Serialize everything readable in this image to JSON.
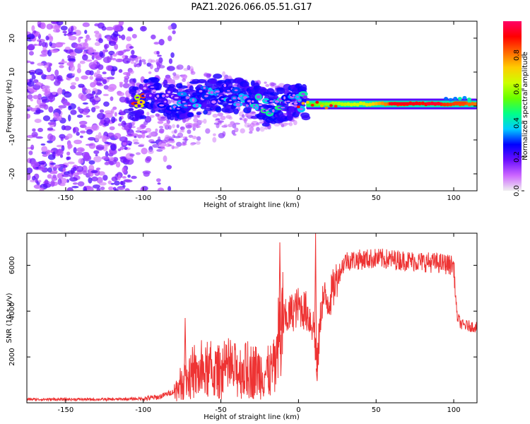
{
  "title": "PAZ1.2026.066.05.51.G17",
  "chart_data": [
    {
      "type": "heatmap",
      "name": "spectrogram",
      "xlabel": "Height of straight line (km)",
      "ylabel": "Frequency (Hz)",
      "xlim": [
        -175,
        115
      ],
      "ylim": [
        -25,
        25
      ],
      "xticks": [
        -150,
        -100,
        -50,
        0,
        50,
        100
      ],
      "yticks": [
        -20,
        -10,
        0,
        10,
        20
      ],
      "colorbar": {
        "label": "Normalized spectral amplitude",
        "range": [
          0,
          1
        ],
        "ticks": [
          "0.0",
          "0.2",
          "0.4",
          "0.6",
          "0.8"
        ],
        "tick_values": [
          0.0,
          0.2,
          0.4,
          0.6,
          0.8
        ],
        "colors": [
          "#f0f0f0",
          "#cc66ff",
          "#6a0dff",
          "#0000ff",
          "#00ccff",
          "#00ff88",
          "#66ff00",
          "#ccff00",
          "#ffcc00",
          "#ff6600",
          "#ff0000",
          "#ff0066"
        ]
      },
      "ridge": {
        "x": [
          -100,
          -90,
          -80,
          -70,
          -60,
          -50,
          -40,
          -30,
          -20,
          -10,
          0,
          5,
          10,
          20,
          40,
          60,
          80,
          100,
          115
        ],
        "freq": [
          4,
          3,
          1,
          2,
          3,
          4,
          3,
          2,
          -1,
          1,
          2,
          0.5,
          0.5,
          0.5,
          0.5,
          0.5,
          0.5,
          0.8,
          0.8
        ],
        "amplitude": [
          0.2,
          0.25,
          0.3,
          0.35,
          0.35,
          0.35,
          0.4,
          0.4,
          0.45,
          0.45,
          0.4,
          0.5,
          0.55,
          0.6,
          0.65,
          0.85,
          0.9,
          0.85,
          0.8
        ]
      }
    },
    {
      "type": "line",
      "name": "snr",
      "xlabel": "Height of straight line (km)",
      "ylabel": "SNR (10 * v/v)",
      "xlim": [
        -175,
        115
      ],
      "ylim": [
        0,
        7400
      ],
      "xticks": [
        -150,
        -100,
        -50,
        0,
        50,
        100
      ],
      "yticks": [
        2000,
        4000,
        6000
      ],
      "color": "#ee3333",
      "trend": {
        "x": [
          -175,
          -120,
          -100,
          -90,
          -80,
          -75,
          -70,
          -60,
          -50,
          -40,
          -30,
          -20,
          -15,
          -12,
          -10,
          -5,
          0,
          5,
          10,
          12,
          15,
          20,
          25,
          30,
          50,
          70,
          90,
          100,
          102,
          105,
          115
        ],
        "y": [
          150,
          150,
          180,
          250,
          500,
          900,
          1100,
          1300,
          1350,
          1400,
          1400,
          1300,
          1500,
          3000,
          3500,
          3900,
          4200,
          4000,
          3300,
          1500,
          4500,
          4500,
          5500,
          6200,
          6300,
          6200,
          6100,
          6000,
          3800,
          3400,
          3300
        ]
      },
      "spikes": [
        {
          "x": -12,
          "y": 7000
        },
        {
          "x": 11,
          "y": 7400
        },
        {
          "x": 12,
          "y": 950
        },
        {
          "x": -73,
          "y": 3700
        }
      ]
    }
  ]
}
